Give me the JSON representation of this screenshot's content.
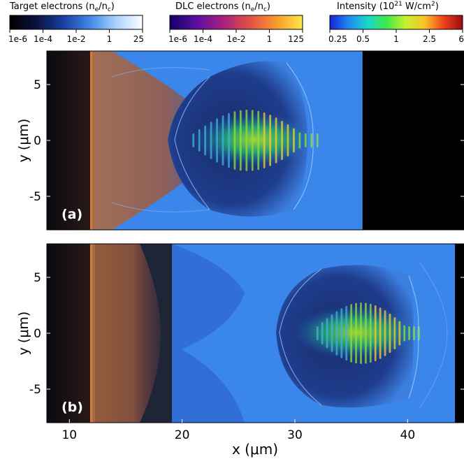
{
  "colorbars": [
    {
      "id": "target",
      "title_main": "Target electrons (n",
      "title_sub1": "e",
      "title_mid": "/n",
      "title_sub2": "c",
      "title_end": ")",
      "ticks": [
        "1e-6",
        "1e-4",
        "1e-2",
        "1",
        "25"
      ],
      "colors": [
        "#000000",
        "#0a1240",
        "#1b3e9c",
        "#3f86e6",
        "#a9d2ff",
        "#ffffff"
      ]
    },
    {
      "id": "dlc",
      "title_main": "DLC electrons (n",
      "title_sub1": "e",
      "title_mid": "/n",
      "title_sub2": "c",
      "title_end": ")",
      "ticks": [
        "1e-6",
        "1e-4",
        "1e-2",
        "1",
        "125"
      ],
      "colors": [
        "#12006a",
        "#5b0fa0",
        "#a8207e",
        "#e04f45",
        "#f89a2e",
        "#fbe84a"
      ]
    },
    {
      "id": "intensity",
      "title_main": "Intensity (10",
      "title_sup": "21",
      "title_mid": " W/cm",
      "title_sup2": "2",
      "title_end": ")",
      "ticks": [
        "0.25",
        "0.5",
        "1",
        "2.5",
        "6"
      ],
      "colors": [
        "#1a22d8",
        "#1f8af0",
        "#19d7c8",
        "#3ee84a",
        "#c8f030",
        "#fbc22a",
        "#f0421e",
        "#9c0a0a"
      ]
    }
  ],
  "chart_data": [
    {
      "type": "heatmap",
      "panel_label": "(a)",
      "xlim": [
        8,
        45
      ],
      "ylim": [
        -8,
        8
      ],
      "y_ticks": [
        5,
        0,
        -5
      ],
      "ylabel": "y (μm)",
      "xlabel": "",
      "target_layer_x": 12,
      "vacuum_region_x": [
        36,
        45
      ],
      "laser_pulse_x": [
        21,
        32
      ]
    },
    {
      "type": "heatmap",
      "panel_label": "(b)",
      "xlim": [
        8,
        45
      ],
      "ylim": [
        -8,
        8
      ],
      "x_ticks": [
        10,
        20,
        30,
        40
      ],
      "y_ticks": [
        5,
        0,
        -5
      ],
      "ylabel": "y (μm)",
      "xlabel": "x (μm)",
      "target_layer_x": 12,
      "vacuum_region_x": [
        44.2,
        45
      ],
      "laser_pulse_x": [
        32,
        41
      ]
    }
  ]
}
